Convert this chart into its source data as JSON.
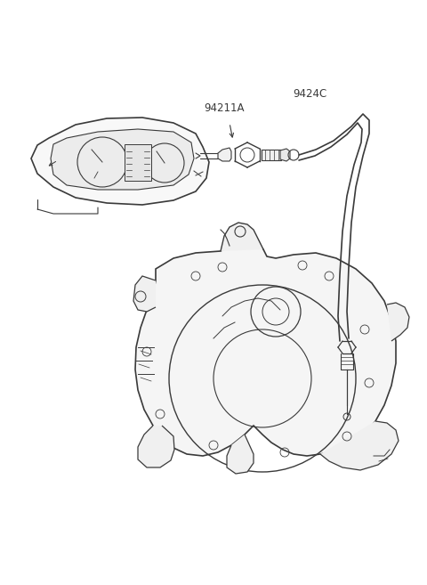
{
  "background_color": "#ffffff",
  "line_color": "#3a3a3a",
  "label_color": "#3a3a3a",
  "label_94211A": "94211A",
  "label_9424C": "9424C",
  "label_fontsize": 8.5
}
